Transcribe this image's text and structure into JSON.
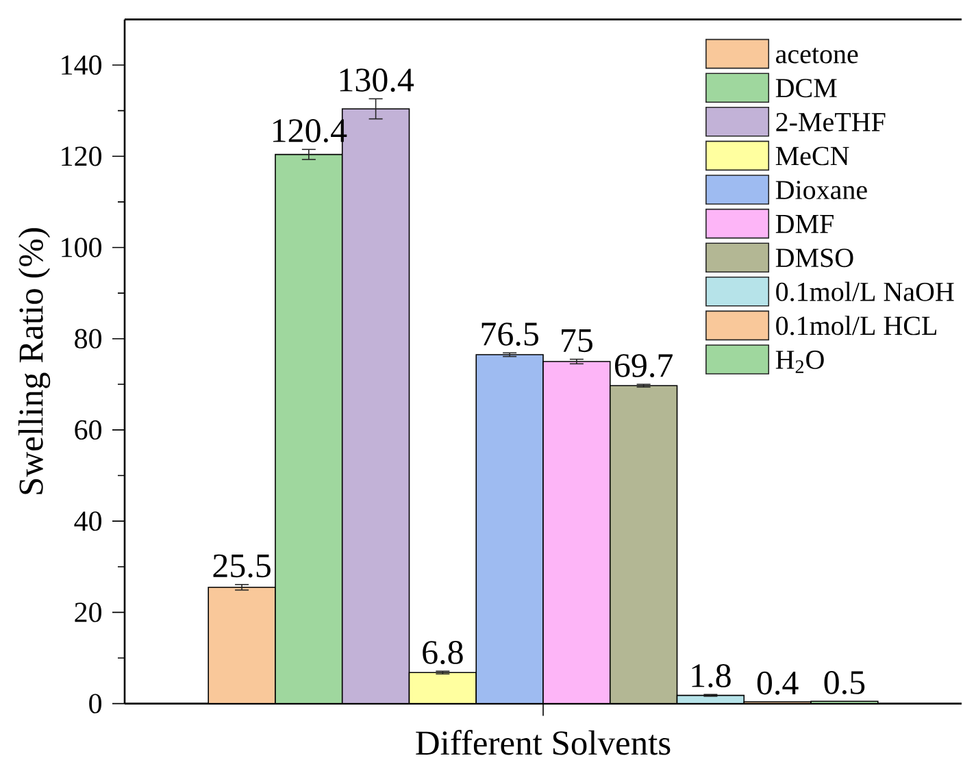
{
  "chart_data": {
    "type": "bar",
    "xlabel": "Different Solvents",
    "ylabel": "Swelling Ratio (%)",
    "categories": [
      null
    ],
    "ylim": [
      0,
      150
    ],
    "yticks": [
      0,
      {
        "value": 10,
        "label": null
      },
      20,
      {
        "value": 30,
        "label": null
      },
      40,
      {
        "value": 50,
        "label": null
      },
      60,
      {
        "value": 70,
        "label": null
      },
      80,
      {
        "value": 90,
        "label": null
      },
      100,
      {
        "value": 110,
        "label": null
      },
      120,
      {
        "value": 130,
        "label": null
      },
      140
    ],
    "legend": "top right",
    "data_labels": true,
    "series": [
      {
        "name": "acetone",
        "color": "#f9c89a",
        "values": [
          25.5
        ],
        "errors": [
          0.6
        ]
      },
      {
        "name": "DCM",
        "color": "#9fd79e",
        "values": [
          120.4
        ],
        "errors": [
          1.1
        ]
      },
      {
        "name": "2-MeTHF",
        "color": "#c2b2d7",
        "values": [
          130.4
        ],
        "errors": [
          2.2
        ]
      },
      {
        "name": "MeCN",
        "color": "#ffff9f",
        "values": [
          6.8
        ],
        "errors": [
          0.3
        ]
      },
      {
        "name": "Dioxane",
        "color": "#9ebbf1",
        "values": [
          76.5
        ],
        "errors": [
          0.4
        ]
      },
      {
        "name": "DMF",
        "color": "#fdb5f7",
        "values": [
          75
        ],
        "errors": [
          0.5
        ]
      },
      {
        "name": "DMSO",
        "color": "#b3b794",
        "values": [
          69.7
        ],
        "errors": [
          0.3
        ]
      },
      {
        "name": "0.1mol/L NaOH",
        "color": "#b6e3e9",
        "values": [
          1.8
        ],
        "errors": [
          0.2
        ]
      },
      {
        "name": "0.1mol/L HCL",
        "color": "#f9c89a",
        "values": [
          0.4
        ],
        "errors": [
          null
        ]
      },
      {
        "name": "H$_{2}$O",
        "color": "#9fd79e",
        "values": [
          0.5
        ],
        "errors": [
          null
        ]
      }
    ]
  }
}
